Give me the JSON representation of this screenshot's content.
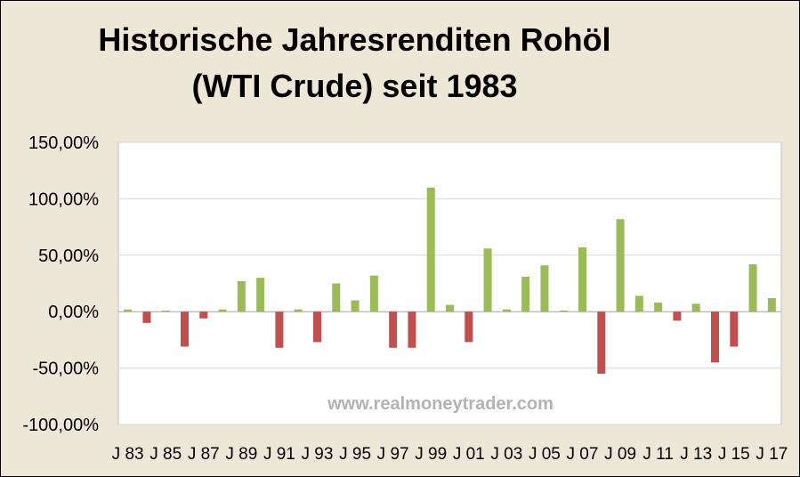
{
  "chart_data": {
    "type": "bar",
    "title_lines": [
      "Historische Jahresrenditen Rohöl",
      "(WTI Crude) seit 1983"
    ],
    "watermark": "www.realmoneytrader.com",
    "xlabel": "",
    "ylabel": "",
    "ylim": [
      -100,
      150
    ],
    "y_ticks": [
      150,
      100,
      50,
      0,
      -50,
      -100
    ],
    "y_tick_labels": [
      "150,00%",
      "100,00%",
      "50,00%",
      "0,00%",
      "-50,00%",
      "-100,00%"
    ],
    "grid": true,
    "legend": "none",
    "colors": {
      "positive": "#9bbb59",
      "negative": "#c0504d",
      "background": "#ece7d6",
      "plot_area": "#ffffff",
      "gridline": "#d9d9d9",
      "watermark": "#b3b3b3"
    },
    "categories": [
      "1983",
      "1984",
      "1985",
      "1986",
      "1987",
      "1988",
      "1989",
      "1990",
      "1991",
      "1992",
      "1993",
      "1994",
      "1995",
      "1996",
      "1997",
      "1998",
      "1999",
      "2000",
      "2001",
      "2002",
      "2003",
      "2004",
      "2005",
      "2006",
      "2007",
      "2008",
      "2009",
      "2010",
      "2011",
      "2012",
      "2013",
      "2014",
      "2015",
      "2016",
      "2017"
    ],
    "x_tick_labels": [
      "J 83",
      "J 85",
      "J 87",
      "J 89",
      "J 91",
      "J 93",
      "J 95",
      "J 97",
      "J 99",
      "J 01",
      "J 03",
      "J 05",
      "J 07",
      "J 09",
      "J 11",
      "J 13",
      "J 15",
      "J 17"
    ],
    "series": [
      {
        "values": [
          2,
          -10,
          1,
          -31,
          -6,
          2,
          27,
          30,
          -32,
          2,
          -27,
          25,
          10,
          32,
          -32,
          -32,
          110,
          6,
          -27,
          56,
          2,
          31,
          41,
          1,
          57,
          -55,
          82,
          14,
          8,
          -8,
          7,
          -45,
          -31,
          42,
          12
        ]
      }
    ]
  }
}
